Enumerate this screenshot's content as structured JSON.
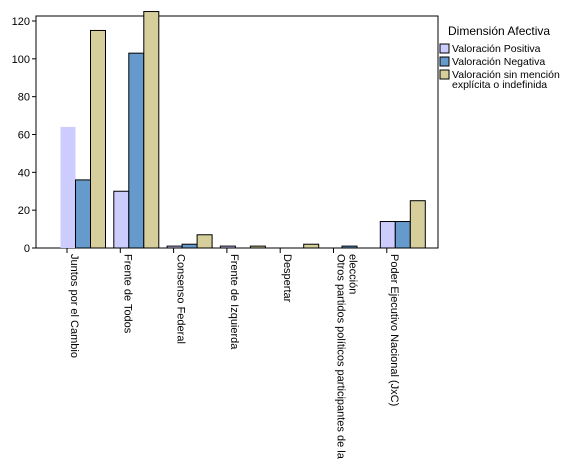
{
  "chart_data": {
    "type": "bar",
    "categories": [
      "Juntos por el Cambio",
      "Frente de Todos",
      "Consenso Federal",
      "Frente de Izquierda",
      "Despertar",
      "Otros partidos políticos participantes de la elección",
      "Poder Ejecutivo Nacional (JxC)"
    ],
    "series": [
      {
        "name": "Valoración Positiva",
        "color": "#ccccff",
        "values": [
          64,
          30,
          1,
          1,
          0,
          0,
          14
        ]
      },
      {
        "name": "Valoración Negativa",
        "color": "#6699cc",
        "values": [
          36,
          103,
          2,
          0,
          0,
          1,
          14
        ]
      },
      {
        "name": "Valoración sin mención explícita o indefinida",
        "color": "#d6cf9b",
        "values": [
          115,
          125,
          7,
          1,
          2,
          0,
          25
        ]
      }
    ],
    "ylim": [
      0,
      130
    ],
    "yticks": [
      0,
      20,
      40,
      60,
      80,
      100,
      120
    ],
    "grid": false,
    "legend": {
      "title": "Dimensión Afectiva",
      "placement": "right",
      "lines": [
        [
          "Valoración Positiva"
        ],
        [
          "Valoración Negativa"
        ],
        [
          "Valoración sin mención",
          "explícita o indefinida"
        ]
      ]
    },
    "category_label_lines": [
      [
        "Juntos por el Cambio"
      ],
      [
        "Frente de Todos"
      ],
      [
        "Consenso Federal"
      ],
      [
        "Frente de Izquierda"
      ],
      [
        "Despertar"
      ],
      [
        "Otros partidos políticos participantes de la",
        "elección"
      ],
      [
        "Poder Ejecutivo Nacional (JxC)"
      ]
    ]
  }
}
